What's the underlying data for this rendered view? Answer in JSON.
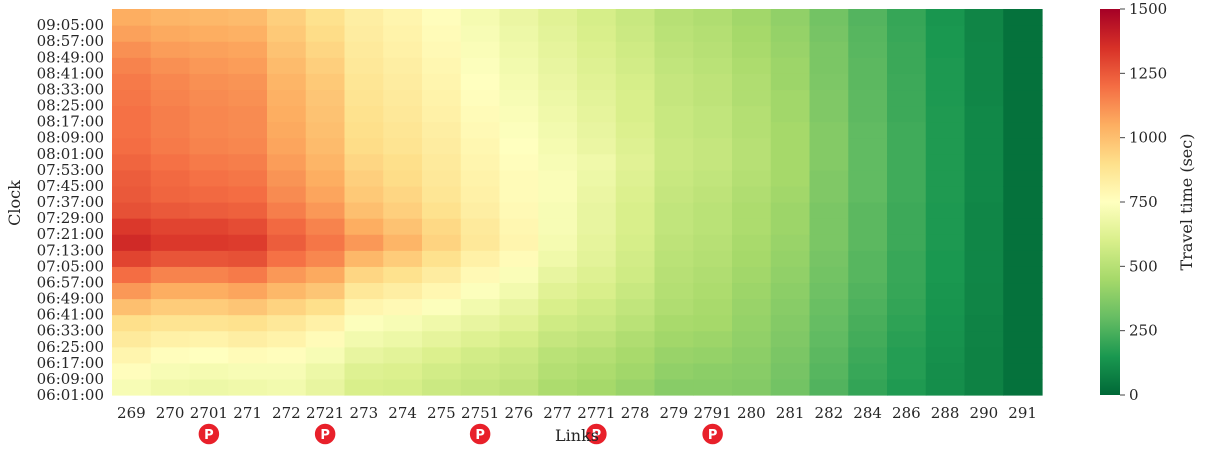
{
  "chart_data": {
    "type": "heatmap",
    "xlabel": "Links",
    "ylabel": "Clock",
    "colorbar_label": "Travel time (sec)",
    "colorbar_ticks": [
      0,
      250,
      500,
      750,
      1000,
      1250,
      1500
    ],
    "value_range": [
      0,
      1500
    ],
    "colormap": "RdYlGn_r",
    "x_categories": [
      "269",
      "270",
      "2701",
      "271",
      "272",
      "2721",
      "273",
      "274",
      "275",
      "2751",
      "276",
      "277",
      "2771",
      "278",
      "279",
      "2791",
      "280",
      "281",
      "282",
      "284",
      "286",
      "288",
      "290",
      "291"
    ],
    "park_marker_links": [
      "2701",
      "2721",
      "2751",
      "2771",
      "2791"
    ],
    "park_marker_label": "P",
    "y_tick_labels": [
      "06:01:00",
      "06:09:00",
      "06:17:00",
      "06:25:00",
      "06:33:00",
      "06:41:00",
      "06:49:00",
      "06:57:00",
      "07:05:00",
      "07:13:00",
      "07:21:00",
      "07:29:00",
      "07:37:00",
      "07:45:00",
      "07:53:00",
      "08:01:00",
      "08:09:00",
      "08:17:00",
      "08:25:00",
      "08:33:00",
      "08:41:00",
      "08:49:00",
      "08:57:00",
      "09:05:00"
    ],
    "values_by_time": [
      [
        720,
        690,
        680,
        690,
        700,
        660,
        600,
        590,
        560,
        540,
        520,
        470,
        450,
        420,
        380,
        380,
        370,
        330,
        260,
        200,
        160,
        120,
        80,
        30
      ],
      [
        760,
        720,
        710,
        720,
        720,
        680,
        620,
        610,
        580,
        560,
        540,
        490,
        470,
        440,
        400,
        390,
        380,
        340,
        270,
        210,
        170,
        120,
        80,
        30
      ],
      [
        800,
        760,
        750,
        770,
        760,
        720,
        660,
        640,
        610,
        580,
        560,
        510,
        490,
        460,
        420,
        410,
        390,
        350,
        280,
        220,
        170,
        125,
        80,
        30
      ],
      [
        850,
        820,
        810,
        830,
        810,
        770,
        700,
        680,
        650,
        620,
        590,
        540,
        520,
        480,
        440,
        430,
        400,
        360,
        290,
        230,
        180,
        130,
        85,
        30
      ],
      [
        900,
        880,
        880,
        890,
        860,
        820,
        740,
        720,
        690,
        660,
        630,
        570,
        550,
        510,
        460,
        450,
        410,
        370,
        300,
        240,
        190,
        135,
        85,
        30
      ],
      [
        1000,
        960,
        960,
        980,
        940,
        900,
        800,
        780,
        740,
        700,
        660,
        600,
        570,
        530,
        480,
        460,
        420,
        380,
        310,
        250,
        200,
        140,
        90,
        30
      ],
      [
        1100,
        1050,
        1050,
        1070,
        1020,
        980,
        860,
        830,
        790,
        740,
        700,
        630,
        600,
        550,
        490,
        470,
        430,
        390,
        320,
        260,
        205,
        145,
        90,
        30
      ],
      [
        1200,
        1150,
        1150,
        1170,
        1100,
        1060,
        930,
        890,
        840,
        780,
        730,
        660,
        620,
        570,
        500,
        480,
        440,
        400,
        330,
        270,
        210,
        150,
        95,
        30
      ],
      [
        1300,
        1260,
        1260,
        1270,
        1190,
        1140,
        1020,
        960,
        890,
        820,
        770,
        690,
        640,
        580,
        510,
        490,
        450,
        410,
        340,
        270,
        210,
        150,
        95,
        30
      ],
      [
        1370,
        1330,
        1330,
        1320,
        1240,
        1180,
        1100,
        1030,
        940,
        860,
        800,
        710,
        650,
        590,
        520,
        500,
        460,
        420,
        350,
        280,
        220,
        155,
        95,
        30
      ],
      [
        1330,
        1300,
        1300,
        1280,
        1210,
        1150,
        1050,
        990,
        920,
        850,
        790,
        720,
        660,
        600,
        530,
        510,
        470,
        430,
        350,
        280,
        220,
        155,
        95,
        30
      ],
      [
        1270,
        1250,
        1240,
        1230,
        1160,
        1100,
        1000,
        950,
        890,
        830,
        780,
        720,
        660,
        600,
        530,
        510,
        470,
        430,
        350,
        280,
        220,
        155,
        95,
        30
      ],
      [
        1250,
        1220,
        1210,
        1200,
        1130,
        1070,
        970,
        930,
        870,
        820,
        770,
        730,
        670,
        610,
        540,
        520,
        480,
        440,
        360,
        290,
        225,
        160,
        100,
        30
      ],
      [
        1240,
        1210,
        1190,
        1180,
        1110,
        1050,
        950,
        910,
        860,
        810,
        770,
        730,
        680,
        620,
        550,
        530,
        490,
        450,
        360,
        290,
        225,
        160,
        100,
        30
      ],
      [
        1220,
        1190,
        1170,
        1160,
        1090,
        1030,
        930,
        900,
        850,
        800,
        760,
        720,
        690,
        630,
        560,
        540,
        500,
        450,
        370,
        290,
        225,
        160,
        100,
        30
      ],
      [
        1200,
        1170,
        1150,
        1140,
        1070,
        1010,
        910,
        880,
        840,
        790,
        750,
        710,
        670,
        620,
        560,
        540,
        500,
        450,
        370,
        290,
        225,
        160,
        100,
        30
      ],
      [
        1190,
        1160,
        1140,
        1130,
        1060,
        1000,
        900,
        870,
        830,
        780,
        740,
        700,
        660,
        610,
        550,
        530,
        490,
        450,
        370,
        290,
        225,
        160,
        100,
        30
      ],
      [
        1190,
        1160,
        1140,
        1130,
        1050,
        990,
        890,
        860,
        820,
        770,
        730,
        690,
        650,
        600,
        550,
        530,
        490,
        440,
        360,
        285,
        220,
        160,
        100,
        30
      ],
      [
        1180,
        1150,
        1130,
        1120,
        1040,
        980,
        880,
        850,
        810,
        760,
        720,
        680,
        640,
        600,
        540,
        520,
        480,
        440,
        360,
        285,
        220,
        155,
        95,
        30
      ],
      [
        1170,
        1140,
        1120,
        1110,
        1030,
        970,
        870,
        840,
        800,
        750,
        710,
        670,
        630,
        590,
        540,
        520,
        480,
        430,
        355,
        280,
        220,
        155,
        95,
        30
      ],
      [
        1150,
        1120,
        1100,
        1090,
        1010,
        950,
        860,
        830,
        790,
        740,
        700,
        660,
        620,
        580,
        530,
        510,
        470,
        430,
        350,
        280,
        215,
        155,
        95,
        30
      ],
      [
        1120,
        1090,
        1080,
        1070,
        990,
        930,
        850,
        820,
        780,
        730,
        690,
        650,
        610,
        570,
        520,
        500,
        460,
        420,
        350,
        275,
        215,
        150,
        95,
        30
      ],
      [
        1080,
        1060,
        1050,
        1040,
        970,
        910,
        840,
        810,
        770,
        720,
        680,
        640,
        600,
        560,
        510,
        490,
        450,
        410,
        340,
        270,
        210,
        150,
        90,
        30
      ],
      [
        1050,
        1030,
        1020,
        1010,
        950,
        890,
        830,
        800,
        760,
        710,
        670,
        630,
        590,
        550,
        500,
        480,
        440,
        400,
        330,
        265,
        205,
        145,
        90,
        30
      ]
    ]
  }
}
